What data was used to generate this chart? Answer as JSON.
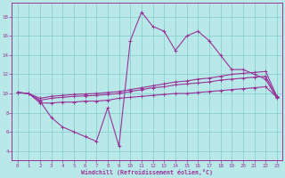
{
  "xlabel": "Windchill (Refroidissement éolien,°C)",
  "background_color": "#b8e8e8",
  "line_color": "#993399",
  "x_ticks": [
    0,
    1,
    2,
    3,
    4,
    5,
    6,
    7,
    8,
    9,
    10,
    11,
    12,
    13,
    14,
    15,
    16,
    17,
    18,
    19,
    20,
    21,
    22,
    23
  ],
  "y_ticks": [
    4,
    6,
    8,
    10,
    12,
    14,
    16,
    18
  ],
  "xlim": [
    -0.5,
    23.5
  ],
  "ylim": [
    3.0,
    19.5
  ],
  "series1_y": [
    10.1,
    10.0,
    9.2,
    7.5,
    6.5,
    6.0,
    5.5,
    5.0,
    8.5,
    4.5,
    15.5,
    18.5,
    17.0,
    16.5,
    14.5,
    16.0,
    16.5,
    15.5,
    14.0,
    12.5,
    12.5,
    12.0,
    11.5,
    9.5
  ],
  "series2_y": [
    10.1,
    10.0,
    9.5,
    9.7,
    9.8,
    9.9,
    9.95,
    10.0,
    10.1,
    10.2,
    10.4,
    10.6,
    10.8,
    11.0,
    11.2,
    11.3,
    11.5,
    11.6,
    11.8,
    12.0,
    12.1,
    12.2,
    12.3,
    9.7
  ],
  "series3_y": [
    10.1,
    10.0,
    9.3,
    9.5,
    9.6,
    9.7,
    9.75,
    9.8,
    9.9,
    10.0,
    10.2,
    10.4,
    10.6,
    10.7,
    10.9,
    11.0,
    11.1,
    11.2,
    11.4,
    11.5,
    11.6,
    11.7,
    11.8,
    9.6
  ],
  "series4_y": [
    10.1,
    10.0,
    9.0,
    9.0,
    9.1,
    9.1,
    9.2,
    9.2,
    9.3,
    9.5,
    9.6,
    9.7,
    9.8,
    9.9,
    10.0,
    10.0,
    10.1,
    10.2,
    10.3,
    10.4,
    10.5,
    10.6,
    10.7,
    9.6
  ]
}
